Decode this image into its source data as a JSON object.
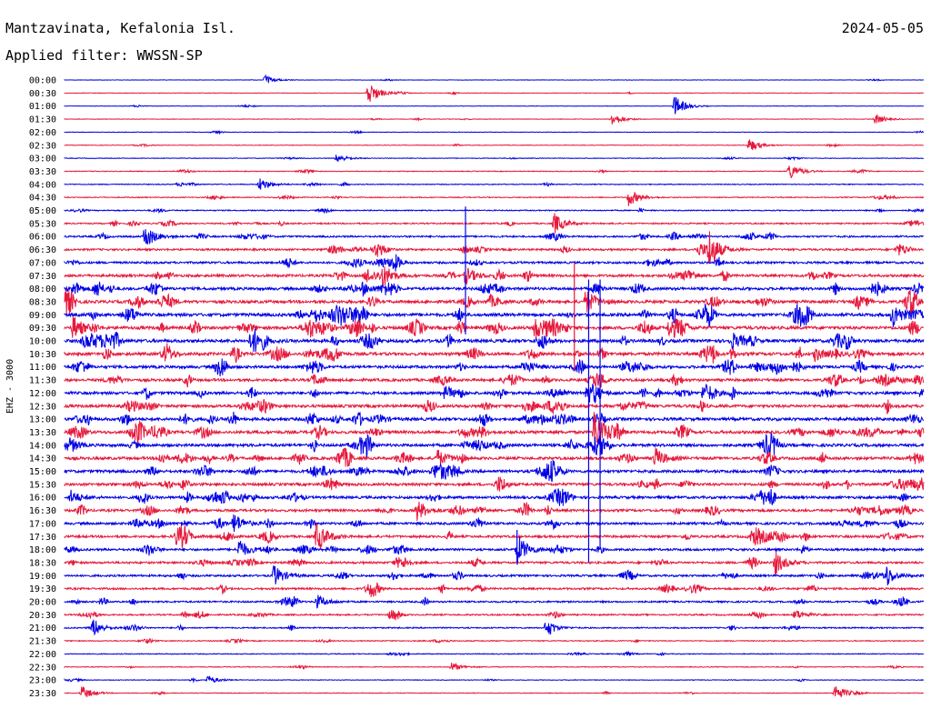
{
  "header": {
    "station": "Mantzavinata, Kefalonia Isl.",
    "date": "2024-05-05",
    "filter": "Applied filter: WWSSN-SP"
  },
  "channel_label": "EHZ - 3000",
  "colors": {
    "even_trace": "#0000e6",
    "odd_trace": "#e6193c",
    "text": "#000000",
    "background": "#ffffff"
  },
  "chart_data": {
    "type": "line",
    "title": "",
    "xlabel": "",
    "ylabel": "EHZ - 3000",
    "grid": false,
    "row_labels": [
      "00:00",
      "00:30",
      "01:00",
      "01:30",
      "02:00",
      "02:30",
      "03:00",
      "03:30",
      "04:00",
      "04:30",
      "05:00",
      "05:30",
      "06:00",
      "06:30",
      "07:00",
      "07:30",
      "08:00",
      "08:30",
      "09:00",
      "09:30",
      "10:00",
      "10:30",
      "11:00",
      "11:30",
      "12:00",
      "12:30",
      "13:00",
      "13:30",
      "14:00",
      "14:30",
      "15:00",
      "15:30",
      "16:00",
      "16:30",
      "17:00",
      "17:30",
      "18:00",
      "18:30",
      "19:00",
      "19:30",
      "20:00",
      "20:30",
      "21:00",
      "21:30",
      "22:00",
      "22:30",
      "23:00",
      "23:30"
    ],
    "noise_level": [
      0.4,
      0.5,
      0.4,
      0.5,
      0.5,
      0.5,
      0.6,
      0.7,
      0.8,
      0.9,
      1.0,
      1.3,
      1.6,
      1.8,
      2.0,
      2.4,
      2.6,
      2.8,
      2.9,
      3.0,
      3.0,
      2.9,
      2.6,
      2.5,
      2.6,
      2.7,
      2.8,
      2.8,
      2.7,
      2.6,
      2.6,
      2.5,
      2.4,
      2.3,
      2.2,
      2.2,
      2.1,
      2.0,
      1.9,
      1.8,
      1.6,
      1.4,
      1.2,
      0.9,
      0.8,
      0.7,
      0.6,
      0.6
    ],
    "events": [
      {
        "row": 0,
        "minute": 7.0,
        "amplitude": 5
      },
      {
        "row": 1,
        "minute": 10.6,
        "amplitude": 14
      },
      {
        "row": 2,
        "minute": 21.3,
        "amplitude": 12
      },
      {
        "row": 3,
        "minute": 19.1,
        "amplitude": 8
      },
      {
        "row": 3,
        "minute": 28.3,
        "amplitude": 6
      },
      {
        "row": 5,
        "minute": 23.9,
        "amplitude": 8
      },
      {
        "row": 6,
        "minute": 9.5,
        "amplitude": 5
      },
      {
        "row": 7,
        "minute": 25.3,
        "amplitude": 10
      },
      {
        "row": 8,
        "minute": 6.8,
        "amplitude": 8
      },
      {
        "row": 9,
        "minute": 19.7,
        "amplitude": 10
      },
      {
        "row": 11,
        "minute": 17.1,
        "amplitude": 12
      },
      {
        "row": 12,
        "minute": 2.8,
        "amplitude": 14
      },
      {
        "row": 13,
        "minute": 22.5,
        "amplitude": 22
      },
      {
        "row": 15,
        "minute": 11.1,
        "amplitude": 10
      },
      {
        "row": 15,
        "minute": 14.0,
        "amplitude": 10
      },
      {
        "row": 16,
        "minute": 10.4,
        "amplitude": 7
      },
      {
        "row": 17,
        "minute": 18.2,
        "amplitude": 14
      },
      {
        "row": 18,
        "minute": 28.9,
        "amplitude": 16
      },
      {
        "row": 19,
        "minute": 0.3,
        "amplitude": 14
      },
      {
        "row": 19,
        "minute": 16.4,
        "amplitude": 14
      },
      {
        "row": 19,
        "minute": 21.1,
        "amplitude": 10
      },
      {
        "row": 20,
        "minute": 6.5,
        "amplitude": 12
      },
      {
        "row": 21,
        "minute": 26.2,
        "amplitude": 8
      },
      {
        "row": 22,
        "minute": 16.0,
        "amplitude": 9
      },
      {
        "row": 24,
        "minute": 18.2,
        "amplitude": 12
      },
      {
        "row": 24,
        "minute": 22.3,
        "amplitude": 9
      },
      {
        "row": 27,
        "minute": 18.5,
        "amplitude": 28
      },
      {
        "row": 29,
        "minute": 13.0,
        "amplitude": 10
      },
      {
        "row": 29,
        "minute": 20.6,
        "amplitude": 12
      },
      {
        "row": 32,
        "minute": 0.2,
        "amplitude": 8
      },
      {
        "row": 33,
        "minute": 12.3,
        "amplitude": 12
      },
      {
        "row": 34,
        "minute": 5.9,
        "amplitude": 12
      },
      {
        "row": 35,
        "minute": 8.8,
        "amplitude": 18
      },
      {
        "row": 35,
        "minute": 3.9,
        "amplitude": 8
      },
      {
        "row": 36,
        "minute": 6.1,
        "amplitude": 10
      },
      {
        "row": 36,
        "minute": 15.8,
        "amplitude": 18
      },
      {
        "row": 37,
        "minute": 24.8,
        "amplitude": 14
      },
      {
        "row": 38,
        "minute": 7.3,
        "amplitude": 12
      },
      {
        "row": 38,
        "minute": 28.7,
        "amplitude": 8
      },
      {
        "row": 40,
        "minute": 8.8,
        "amplitude": 8
      },
      {
        "row": 41,
        "minute": 25.5,
        "amplitude": 6
      },
      {
        "row": 42,
        "minute": 1.0,
        "amplitude": 8
      },
      {
        "row": 42,
        "minute": 16.8,
        "amplitude": 7
      },
      {
        "row": 45,
        "minute": 13.5,
        "amplitude": 5
      },
      {
        "row": 46,
        "minute": 5.0,
        "amplitude": 5
      },
      {
        "row": 47,
        "minute": 0.6,
        "amplitude": 8
      },
      {
        "row": 47,
        "minute": 26.9,
        "amplitude": 10
      }
    ],
    "spikes": [
      {
        "row": 10,
        "minute": 14.0,
        "up_rows": 0.3,
        "down_rows": 9.5
      },
      {
        "row": 16,
        "minute": 18.3,
        "up_rows": 0.7,
        "down_rows": 21
      },
      {
        "row": 16,
        "minute": 18.7,
        "up_rows": 0.7,
        "down_rows": 20
      },
      {
        "row": 21,
        "minute": 17.8,
        "up_rows": 7,
        "down_rows": 1.3
      },
      {
        "row": 36,
        "minute": 15.8,
        "up_rows": 1.5,
        "down_rows": 1.0
      }
    ]
  }
}
